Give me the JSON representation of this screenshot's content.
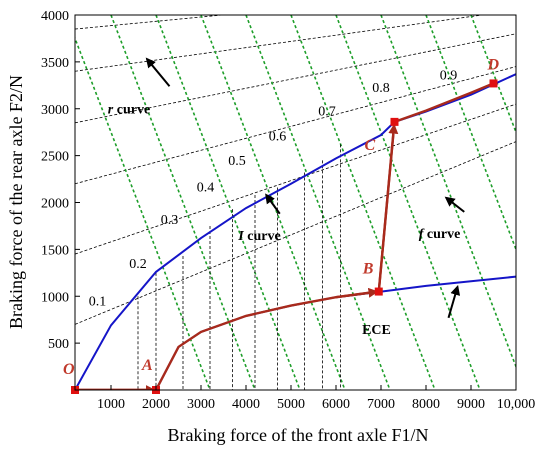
{
  "chart_data": {
    "type": "line",
    "xlabel": "Braking force of the front axle F1/N",
    "ylabel": "Braking force of the rear axle F2/N",
    "xlim": [
      200,
      10000
    ],
    "ylim": [
      0,
      4000
    ],
    "x_ticks": [
      "1000",
      "2000",
      "3000",
      "4000",
      "5000",
      "6000",
      "7000",
      "8000",
      "9000",
      "10,000"
    ],
    "y_ticks": [
      "500",
      "1000",
      "1500",
      "2000",
      "2500",
      "3000",
      "3500",
      "4000"
    ],
    "grid": false,
    "legend": "none",
    "colors": {
      "I_curve": "#1515c8",
      "ECE": "#1515c8",
      "brake_path": "#a82a1c",
      "f_lines": "#1e9e2a",
      "r_lines": "#000000",
      "marker": "#e01010"
    },
    "I_curve": [
      [
        200,
        0
      ],
      [
        1000,
        690
      ],
      [
        2000,
        1260
      ],
      [
        3000,
        1620
      ],
      [
        4000,
        1940
      ],
      [
        5000,
        2200
      ],
      [
        6000,
        2470
      ],
      [
        7000,
        2720
      ],
      [
        7300,
        2860
      ],
      [
        8000,
        2970
      ],
      [
        9000,
        3150
      ],
      [
        10000,
        3370
      ]
    ],
    "ECE_curve": [
      [
        2000,
        0
      ],
      [
        2500,
        460
      ],
      [
        3000,
        620
      ],
      [
        4000,
        790
      ],
      [
        5000,
        900
      ],
      [
        6000,
        990
      ],
      [
        7000,
        1050
      ],
      [
        8000,
        1110
      ],
      [
        9000,
        1160
      ],
      [
        10000,
        1210
      ]
    ],
    "brake_path": [
      [
        200,
        0
      ],
      [
        2000,
        0
      ],
      [
        2500,
        460
      ],
      [
        3000,
        620
      ],
      [
        4000,
        790
      ],
      [
        5000,
        900
      ],
      [
        6000,
        990
      ],
      [
        6950,
        1050
      ],
      [
        7300,
        2860
      ],
      [
        8000,
        2980
      ],
      [
        9000,
        3170
      ],
      [
        9500,
        3270
      ]
    ],
    "f_lines": [
      [
        0,
        3200
      ],
      [
        1000,
        4200
      ],
      [
        2000,
        5200
      ],
      [
        3000,
        6200
      ],
      [
        4000,
        7200
      ],
      [
        5000,
        8200
      ],
      [
        6000,
        9200
      ],
      [
        7000,
        10200
      ],
      [
        8000,
        11200
      ],
      [
        9000,
        12200
      ],
      [
        10000,
        13200
      ]
    ],
    "r_lines": [
      [
        0.1,
        700,
        200,
        10000,
        2650
      ],
      [
        0.2,
        1450,
        200,
        10000,
        3050
      ],
      [
        0.3,
        2200,
        200,
        10000,
        3450
      ],
      [
        0.4,
        2850,
        200,
        10000,
        3800
      ],
      [
        0.5,
        3400,
        200,
        10000,
        4050
      ],
      [
        0.6,
        3850,
        200,
        10000,
        4300
      ],
      [
        0.7,
        4000,
        1600,
        10000,
        4550
      ],
      [
        0.8,
        4000,
        3300,
        10000,
        4700
      ]
    ],
    "vertical_drops": [
      [
        1600,
        1000
      ],
      [
        2000,
        1250
      ],
      [
        2600,
        1430
      ],
      [
        3200,
        1750
      ],
      [
        3700,
        1930
      ],
      [
        4200,
        2080
      ],
      [
        4700,
        2160
      ],
      [
        5300,
        2320
      ],
      [
        5700,
        2450
      ],
      [
        6100,
        2620
      ]
    ],
    "annotations": {
      "r_curve": "r curve",
      "I_curve": "I curve",
      "f_curve": "f curve",
      "ECE": "ECE"
    },
    "mu_labels": [
      "0.1",
      "0.2",
      "0.3",
      "0.4",
      "0.5",
      "0.6",
      "0.7",
      "0.8",
      "0.9"
    ],
    "mu_positions": [
      [
        700,
        900
      ],
      [
        1600,
        1300
      ],
      [
        2300,
        1770
      ],
      [
        3100,
        2120
      ],
      [
        3800,
        2400
      ],
      [
        4700,
        2660
      ],
      [
        5800,
        2930
      ],
      [
        7000,
        3180
      ],
      [
        8500,
        3310
      ]
    ],
    "points": [
      {
        "label": "O",
        "x": 200,
        "y": 0
      },
      {
        "label": "A",
        "x": 2000,
        "y": 0
      },
      {
        "label": "B",
        "x": 6950,
        "y": 1050
      },
      {
        "label": "C",
        "x": 7300,
        "y": 2860
      },
      {
        "label": "D",
        "x": 9500,
        "y": 3270
      }
    ]
  }
}
